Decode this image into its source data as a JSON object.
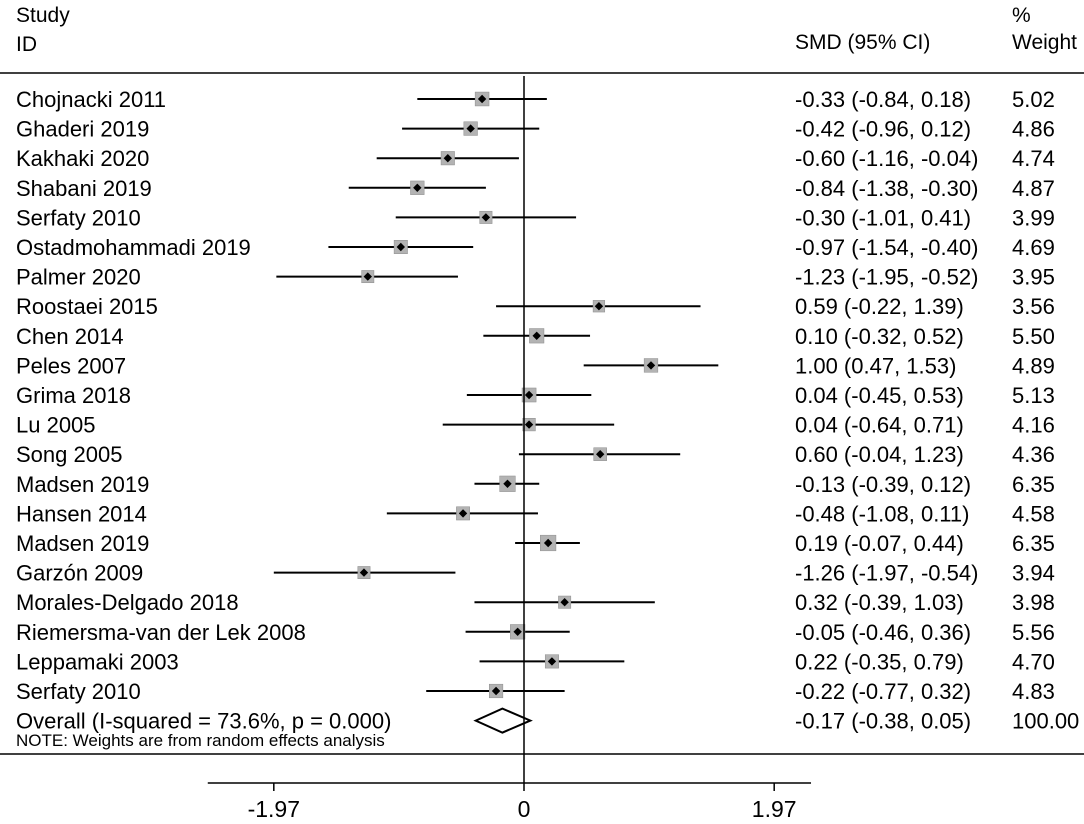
{
  "chart_data": {
    "type": "forest",
    "headers": {
      "study_line1": "Study",
      "study_line2": "ID",
      "effect": "SMD (95% CI)",
      "weight_line1": "%",
      "weight_line2": "Weight"
    },
    "x_ticks": [
      {
        "value": -1.97,
        "label": "-1.97"
      },
      {
        "value": 0,
        "label": "0"
      },
      {
        "value": 1.97,
        "label": "1.97"
      }
    ],
    "xlim": [
      -2.49,
      2.26
    ],
    "studies": [
      {
        "label": "Chojnacki 2011",
        "smd": -0.33,
        "lower": -0.84,
        "upper": 0.18,
        "ci_text": "-0.33 (-0.84, 0.18)",
        "weight": 5.02,
        "weight_text": "5.02"
      },
      {
        "label": "Ghaderi 2019",
        "smd": -0.42,
        "lower": -0.96,
        "upper": 0.12,
        "ci_text": "-0.42 (-0.96, 0.12)",
        "weight": 4.86,
        "weight_text": "4.86"
      },
      {
        "label": "Kakhaki 2020",
        "smd": -0.6,
        "lower": -1.16,
        "upper": -0.04,
        "ci_text": "-0.60 (-1.16, -0.04)",
        "weight": 4.74,
        "weight_text": "4.74"
      },
      {
        "label": "Shabani 2019",
        "smd": -0.84,
        "lower": -1.38,
        "upper": -0.3,
        "ci_text": "-0.84 (-1.38, -0.30)",
        "weight": 4.87,
        "weight_text": "4.87"
      },
      {
        "label": "Serfaty 2010",
        "smd": -0.3,
        "lower": -1.01,
        "upper": 0.41,
        "ci_text": "-0.30 (-1.01, 0.41)",
        "weight": 3.99,
        "weight_text": "3.99"
      },
      {
        "label": "Ostadmohammadi 2019",
        "smd": -0.97,
        "lower": -1.54,
        "upper": -0.4,
        "ci_text": "-0.97 (-1.54, -0.40)",
        "weight": 4.69,
        "weight_text": "4.69"
      },
      {
        "label": "Palmer 2020",
        "smd": -1.23,
        "lower": -1.95,
        "upper": -0.52,
        "ci_text": "-1.23 (-1.95, -0.52)",
        "weight": 3.95,
        "weight_text": "3.95"
      },
      {
        "label": "Roostaei 2015",
        "smd": 0.59,
        "lower": -0.22,
        "upper": 1.39,
        "ci_text": "0.59 (-0.22, 1.39)",
        "weight": 3.56,
        "weight_text": "3.56"
      },
      {
        "label": "Chen 2014",
        "smd": 0.1,
        "lower": -0.32,
        "upper": 0.52,
        "ci_text": "0.10 (-0.32, 0.52)",
        "weight": 5.5,
        "weight_text": "5.50"
      },
      {
        "label": "Peles 2007",
        "smd": 1.0,
        "lower": 0.47,
        "upper": 1.53,
        "ci_text": "1.00 (0.47, 1.53)",
        "weight": 4.89,
        "weight_text": "4.89"
      },
      {
        "label": "Grima 2018",
        "smd": 0.04,
        "lower": -0.45,
        "upper": 0.53,
        "ci_text": "0.04 (-0.45, 0.53)",
        "weight": 5.13,
        "weight_text": "5.13"
      },
      {
        "label": "Lu 2005",
        "smd": 0.04,
        "lower": -0.64,
        "upper": 0.71,
        "ci_text": "0.04 (-0.64, 0.71)",
        "weight": 4.16,
        "weight_text": "4.16"
      },
      {
        "label": "Song 2005",
        "smd": 0.6,
        "lower": -0.04,
        "upper": 1.23,
        "ci_text": "0.60 (-0.04, 1.23)",
        "weight": 4.36,
        "weight_text": "4.36"
      },
      {
        "label": "Madsen 2019",
        "smd": -0.13,
        "lower": -0.39,
        "upper": 0.12,
        "ci_text": "-0.13 (-0.39, 0.12)",
        "weight": 6.35,
        "weight_text": "6.35"
      },
      {
        "label": "Hansen 2014",
        "smd": -0.48,
        "lower": -1.08,
        "upper": 0.11,
        "ci_text": "-0.48 (-1.08, 0.11)",
        "weight": 4.58,
        "weight_text": "4.58"
      },
      {
        "label": "Madsen 2019",
        "smd": 0.19,
        "lower": -0.07,
        "upper": 0.44,
        "ci_text": "0.19 (-0.07, 0.44)",
        "weight": 6.35,
        "weight_text": "6.35"
      },
      {
        "label": "Garzón 2009",
        "smd": -1.26,
        "lower": -1.97,
        "upper": -0.54,
        "ci_text": "-1.26 (-1.97, -0.54)",
        "weight": 3.94,
        "weight_text": "3.94"
      },
      {
        "label": "Morales-Delgado 2018",
        "smd": 0.32,
        "lower": -0.39,
        "upper": 1.03,
        "ci_text": "0.32 (-0.39, 1.03)",
        "weight": 3.98,
        "weight_text": "3.98"
      },
      {
        "label": "Riemersma-van der Lek 2008",
        "smd": -0.05,
        "lower": -0.46,
        "upper": 0.36,
        "ci_text": "-0.05 (-0.46, 0.36)",
        "weight": 5.56,
        "weight_text": "5.56"
      },
      {
        "label": "Leppamaki 2003",
        "smd": 0.22,
        "lower": -0.35,
        "upper": 0.79,
        "ci_text": "0.22 (-0.35, 0.79)",
        "weight": 4.7,
        "weight_text": "4.70"
      },
      {
        "label": "Serfaty 2010",
        "smd": -0.22,
        "lower": -0.77,
        "upper": 0.32,
        "ci_text": "-0.22 (-0.77, 0.32)",
        "weight": 4.83,
        "weight_text": "4.83"
      }
    ],
    "overall": {
      "label": "Overall  (I-squared = 73.6%, p = 0.000)",
      "smd": -0.17,
      "lower": -0.38,
      "upper": 0.05,
      "ci_text": "-0.17 (-0.38, 0.05)",
      "weight": 100.0,
      "weight_text": "100.00"
    },
    "note": "NOTE: Weights are from random effects analysis",
    "colors": {
      "line": "#000000",
      "box_fill": "#b3b3b3",
      "box_stroke": "#8c8c8c",
      "point": "#000000"
    }
  }
}
